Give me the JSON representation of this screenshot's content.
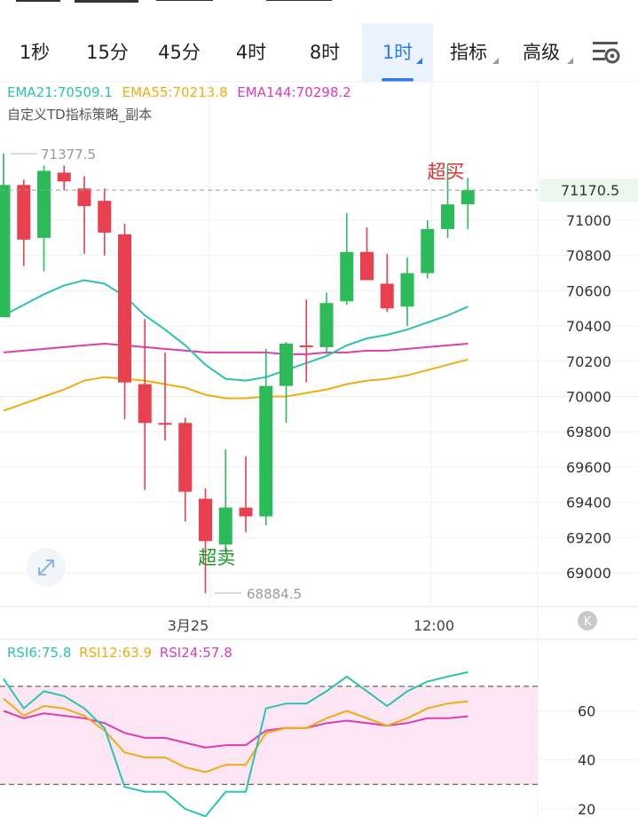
{
  "tabs": [
    {
      "label": "1秒",
      "active": false,
      "dropdown": false
    },
    {
      "label": "15分",
      "active": false,
      "dropdown": false
    },
    {
      "label": "45分",
      "active": false,
      "dropdown": false
    },
    {
      "label": "4时",
      "active": false,
      "dropdown": false
    },
    {
      "label": "8时",
      "active": false,
      "dropdown": false
    },
    {
      "label": "1时",
      "active": true,
      "dropdown": true
    },
    {
      "label": "指标",
      "active": false,
      "dropdown": true
    },
    {
      "label": "高级",
      "active": false,
      "dropdown": true
    }
  ],
  "colors": {
    "up": "#2dbb5a",
    "down": "#e8404f",
    "accent": "#2f7be8",
    "ema21": "#2bc3b0",
    "ema55": "#f0ac12",
    "ema144": "#d83fb3",
    "rsi6": "#2bc3b0",
    "rsi12": "#f0ac12",
    "rsi24": "#d83fb3",
    "rsi_band": "#fde6f4"
  },
  "main_legend": {
    "ema21": "EMA21:70509.1",
    "ema55": "EMA55:70213.8",
    "ema144": "EMA144:70298.2",
    "strategy": "自定义TD指标策略_副本"
  },
  "rsi_legend": {
    "rsi6": "RSI6:75.8",
    "rsi12": "RSI12:63.9",
    "rsi24": "RSI24:57.8"
  },
  "chart_data": [
    {
      "type": "candlestick",
      "y_ticks": [
        71000,
        70800,
        70600,
        70400,
        70200,
        70000,
        69800,
        69600,
        69400,
        69200,
        69000
      ],
      "x_labels": [
        "3月25",
        "12:00"
      ],
      "last_price": "71170.5",
      "high_label": "71377.5",
      "low_label": "68884.5",
      "candles": [
        {
          "o": 70450,
          "h": 71380,
          "l": 70450,
          "c": 71200
        },
        {
          "o": 71200,
          "h": 71230,
          "l": 70740,
          "c": 70890
        },
        {
          "o": 70900,
          "h": 71310,
          "l": 70710,
          "c": 71280
        },
        {
          "o": 71270,
          "h": 71310,
          "l": 71170,
          "c": 71220
        },
        {
          "o": 71180,
          "h": 71250,
          "l": 70810,
          "c": 71080
        },
        {
          "o": 71110,
          "h": 71180,
          "l": 70800,
          "c": 70930
        },
        {
          "o": 70920,
          "h": 70980,
          "l": 69870,
          "c": 70080
        },
        {
          "o": 70070,
          "h": 70440,
          "l": 69470,
          "c": 69850
        },
        {
          "o": 69850,
          "h": 70250,
          "l": 69750,
          "c": 69840
        },
        {
          "o": 69850,
          "h": 69880,
          "l": 69290,
          "c": 69460
        },
        {
          "o": 69420,
          "h": 69480,
          "l": 68884.5,
          "c": 69180
        },
        {
          "o": 69160,
          "h": 69700,
          "l": 69120,
          "c": 69370
        },
        {
          "o": 69370,
          "h": 69660,
          "l": 69230,
          "c": 69320
        },
        {
          "o": 69320,
          "h": 70270,
          "l": 69270,
          "c": 70060
        },
        {
          "o": 70060,
          "h": 70310,
          "l": 69850,
          "c": 70300
        },
        {
          "o": 70290,
          "h": 70550,
          "l": 70080,
          "c": 70280
        },
        {
          "o": 70280,
          "h": 70590,
          "l": 70240,
          "c": 70530
        },
        {
          "o": 70540,
          "h": 71040,
          "l": 70520,
          "c": 70820
        },
        {
          "o": 70820,
          "h": 70960,
          "l": 70660,
          "c": 70660
        },
        {
          "o": 70640,
          "h": 70810,
          "l": 70480,
          "c": 70500
        },
        {
          "o": 70510,
          "h": 70790,
          "l": 70400,
          "c": 70700
        },
        {
          "o": 70700,
          "h": 71000,
          "l": 70670,
          "c": 70950
        },
        {
          "o": 70950,
          "h": 71320,
          "l": 70900,
          "c": 71090
        },
        {
          "o": 71090,
          "h": 71240,
          "l": 70950,
          "c": 71170.5
        }
      ],
      "ema21": [
        70460,
        70520,
        70580,
        70630,
        70660,
        70640,
        70570,
        70460,
        70380,
        70290,
        70180,
        70100,
        70090,
        70110,
        70150,
        70190,
        70230,
        70290,
        70330,
        70350,
        70380,
        70420,
        70460,
        70510
      ],
      "ema55": [
        69920,
        69960,
        70000,
        70040,
        70090,
        70110,
        70100,
        70090,
        70070,
        70050,
        70010,
        69990,
        69990,
        70000,
        70000,
        70020,
        70040,
        70070,
        70090,
        70100,
        70120,
        70150,
        70180,
        70210
      ],
      "ema144": [
        70250,
        70260,
        70270,
        70280,
        70290,
        70300,
        70290,
        70280,
        70270,
        70260,
        70250,
        70250,
        70250,
        70250,
        70240,
        70240,
        70250,
        70250,
        70260,
        70260,
        70270,
        70280,
        70290,
        70300
      ],
      "signals": [
        {
          "label": "超买",
          "candle": 22,
          "kind": "overbought"
        },
        {
          "label": "超卖",
          "candle": 11,
          "kind": "oversold"
        }
      ]
    },
    {
      "type": "line",
      "y_ticks": [
        60,
        40,
        20
      ],
      "band": [
        30,
        70
      ],
      "series": [
        {
          "name": "RSI6",
          "values": [
            73,
            61,
            68,
            66,
            61,
            53,
            29,
            27,
            27,
            20,
            17,
            27,
            27,
            61,
            63,
            63,
            68,
            74,
            68,
            62,
            68,
            72,
            74,
            75.8
          ]
        },
        {
          "name": "RSI12",
          "values": [
            65,
            58,
            62,
            61,
            58,
            52,
            43,
            41,
            41,
            37,
            35,
            38,
            38,
            51,
            53,
            53,
            57,
            60,
            57,
            54,
            57,
            61,
            63,
            63.9
          ]
        },
        {
          "name": "RSI24",
          "values": [
            60,
            57,
            59,
            58,
            57,
            55,
            51,
            49,
            49,
            47,
            45,
            46,
            46,
            52,
            53,
            53,
            55,
            56,
            55,
            54,
            55,
            57,
            57,
            57.8
          ]
        }
      ]
    }
  ]
}
